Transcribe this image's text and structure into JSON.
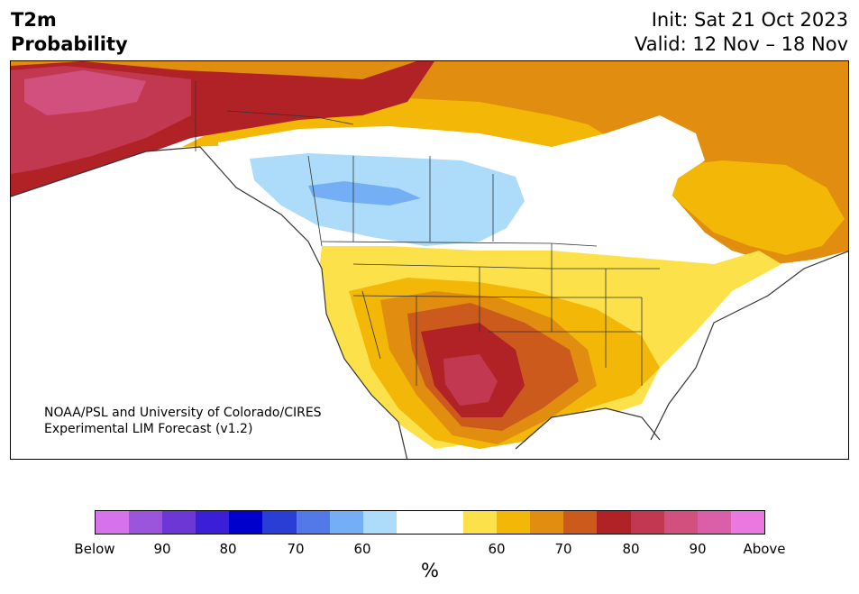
{
  "header": {
    "title_line1": "T2m",
    "title_line2": "Probability",
    "init_text": "Init: Sat 21 Oct 2023",
    "valid_text": "Valid: 12 Nov – 18 Nov"
  },
  "map": {
    "credit_line1": "NOAA/PSL and University of Colorado/CIRES",
    "credit_line2": "Experimental LIM Forecast (v1.2)",
    "palette": {
      "below_90": "#9b55dc",
      "below_60": "#74aff5",
      "below_50": "#acdcfa",
      "neutral": "#ffffff",
      "above_50": "#fde14b",
      "above_60": "#f2b707",
      "above_70": "#e08d10",
      "above_75": "#cc5a1d",
      "above_80": "#b02226",
      "above_85": "#c23851",
      "above_90": "#d2507e",
      "border": "#333333"
    }
  },
  "colorbar": {
    "unit": "%",
    "colors": [
      "#d673ec",
      "#9b55dc",
      "#6d37d6",
      "#3a1fd6",
      "#0000cc",
      "#2a3ed6",
      "#5379e8",
      "#74aff5",
      "#acdcfa",
      "#ffffff",
      "#ffffff",
      "#fde14b",
      "#f2b707",
      "#e08d10",
      "#cc5a1d",
      "#b02226",
      "#c23851",
      "#d2507e",
      "#db5fa8",
      "#ea78e0"
    ],
    "tick_labels": [
      "Below",
      "90",
      "80",
      "70",
      "60",
      "60",
      "70",
      "80",
      "90",
      "Above"
    ]
  }
}
